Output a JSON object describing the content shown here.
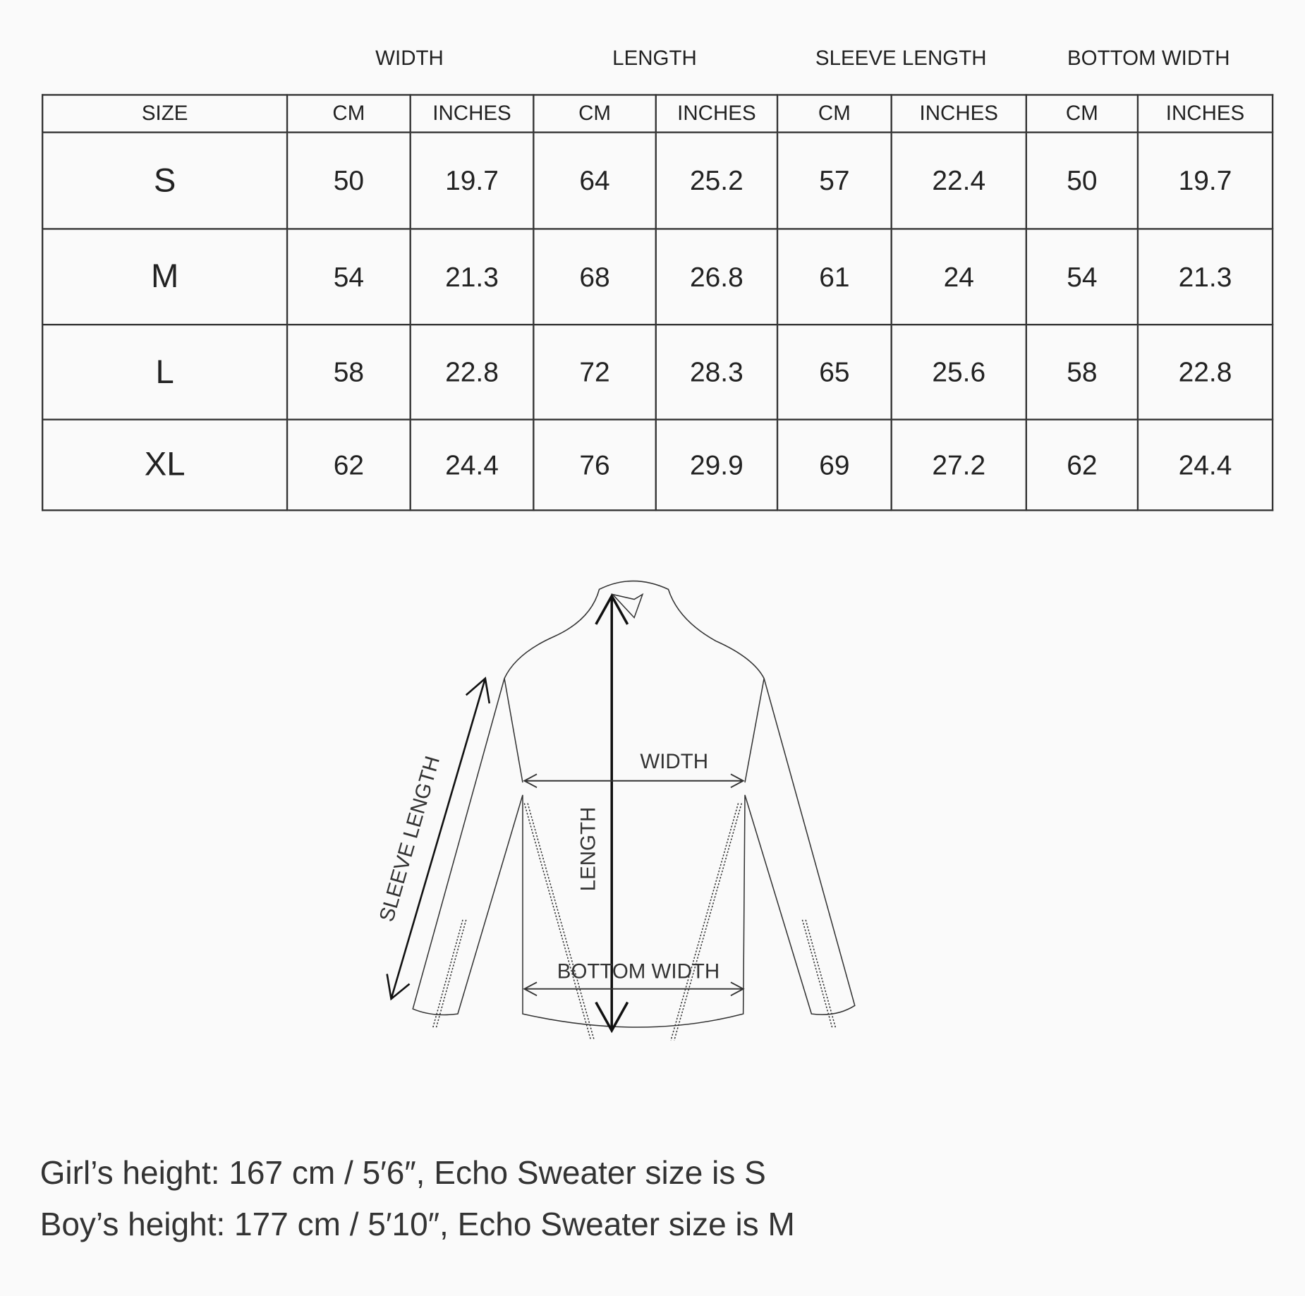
{
  "groups": [
    "WIDTH",
    "LENGTH",
    "SLEEVE LENGTH",
    "BOTTOM WIDTH"
  ],
  "columns": [
    "SIZE",
    "CM",
    "INCHES",
    "CM",
    "INCHES",
    "CM",
    "INCHES",
    "CM",
    "INCHES"
  ],
  "rows": [
    [
      "S",
      "50",
      "19.7",
      "64",
      "25.2",
      "57",
      "22.4",
      "50",
      "19.7"
    ],
    [
      "M",
      "54",
      "21.3",
      "68",
      "26.8",
      "61",
      "24",
      "54",
      "21.3"
    ],
    [
      "L",
      "58",
      "22.8",
      "72",
      "28.3",
      "65",
      "25.6",
      "58",
      "22.8"
    ],
    [
      "XL",
      "62",
      "24.4",
      "76",
      "29.9",
      "69",
      "27.2",
      "62",
      "24.4"
    ]
  ],
  "diagram": {
    "width": "WIDTH",
    "length": "LENGTH",
    "sleeve": "SLEEVE LENGTH",
    "bottom": "BOTTOM WIDTH"
  },
  "notes": [
    "Girl’s height: 167 cm / 5′6″, Echo Sweater size is S",
    "Boy’s height: 177 cm / 5′10″, Echo Sweater size is M"
  ]
}
